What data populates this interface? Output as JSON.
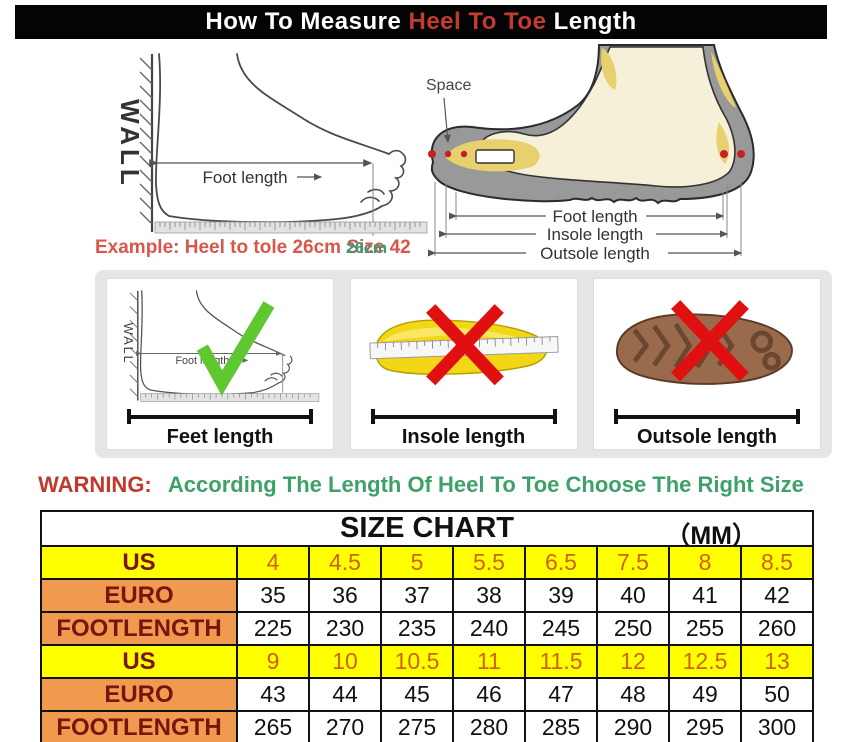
{
  "title": {
    "part1": "How To Measure ",
    "highlight": "Heel To Toe",
    "part2": " Length"
  },
  "top_left_diagram": {
    "wall_label": "WALL",
    "foot_length_label": "Foot length",
    "example_text": "Example: Heel to tole 26cm Size 42",
    "ruler_value": "26cm"
  },
  "top_right_diagram": {
    "space_label": "Space",
    "foot_length_label": "Foot length",
    "insole_length_label": "Insole length",
    "outsole_length_label": "Outsole length"
  },
  "method_panels": [
    {
      "label": "Feet length",
      "verdict": "correct",
      "wall_label": "WALL",
      "inner_label": "Foot length"
    },
    {
      "label": "Insole length",
      "verdict": "wrong"
    },
    {
      "label": "Outsole length",
      "verdict": "wrong"
    }
  ],
  "warning": {
    "prefix": "WARNING:",
    "text": "According The Length Of Heel To Toe Choose The Right Size"
  },
  "size_chart": {
    "title": "SIZE CHART",
    "unit": "（MM）",
    "rows": [
      {
        "label": "US",
        "style": "us",
        "values": [
          "4",
          "4.5",
          "5",
          "5.5",
          "6.5",
          "7.5",
          "8",
          "8.5"
        ]
      },
      {
        "label": "EURO",
        "style": "std",
        "values": [
          "35",
          "36",
          "37",
          "38",
          "39",
          "40",
          "41",
          "42"
        ]
      },
      {
        "label": "FOOTLENGTH",
        "style": "std",
        "values": [
          "225",
          "230",
          "235",
          "240",
          "245",
          "250",
          "255",
          "260"
        ]
      },
      {
        "label": "US",
        "style": "us",
        "values": [
          "9",
          "10",
          "10.5",
          "11",
          "11.5",
          "12",
          "12.5",
          "13"
        ]
      },
      {
        "label": "EURO",
        "style": "std",
        "values": [
          "43",
          "44",
          "45",
          "46",
          "47",
          "48",
          "49",
          "50"
        ]
      },
      {
        "label": "FOOTLENGTH",
        "style": "std",
        "values": [
          "265",
          "270",
          "275",
          "280",
          "285",
          "290",
          "295",
          "300"
        ]
      }
    ]
  },
  "colors": {
    "title_bg": "#040404",
    "title_accent": "#c23b2e",
    "example_red": "#d8564a",
    "measure_green": "#2f9e74",
    "warning_red": "#c0392b",
    "warning_green": "#3fa06a",
    "row_yellow": "#ffff00",
    "label_orange": "#ef9a4f",
    "label_maroon": "#7b1411",
    "us_value_orange": "#cf6214",
    "check_green": "#5fc730",
    "cross_red": "#e01010"
  }
}
